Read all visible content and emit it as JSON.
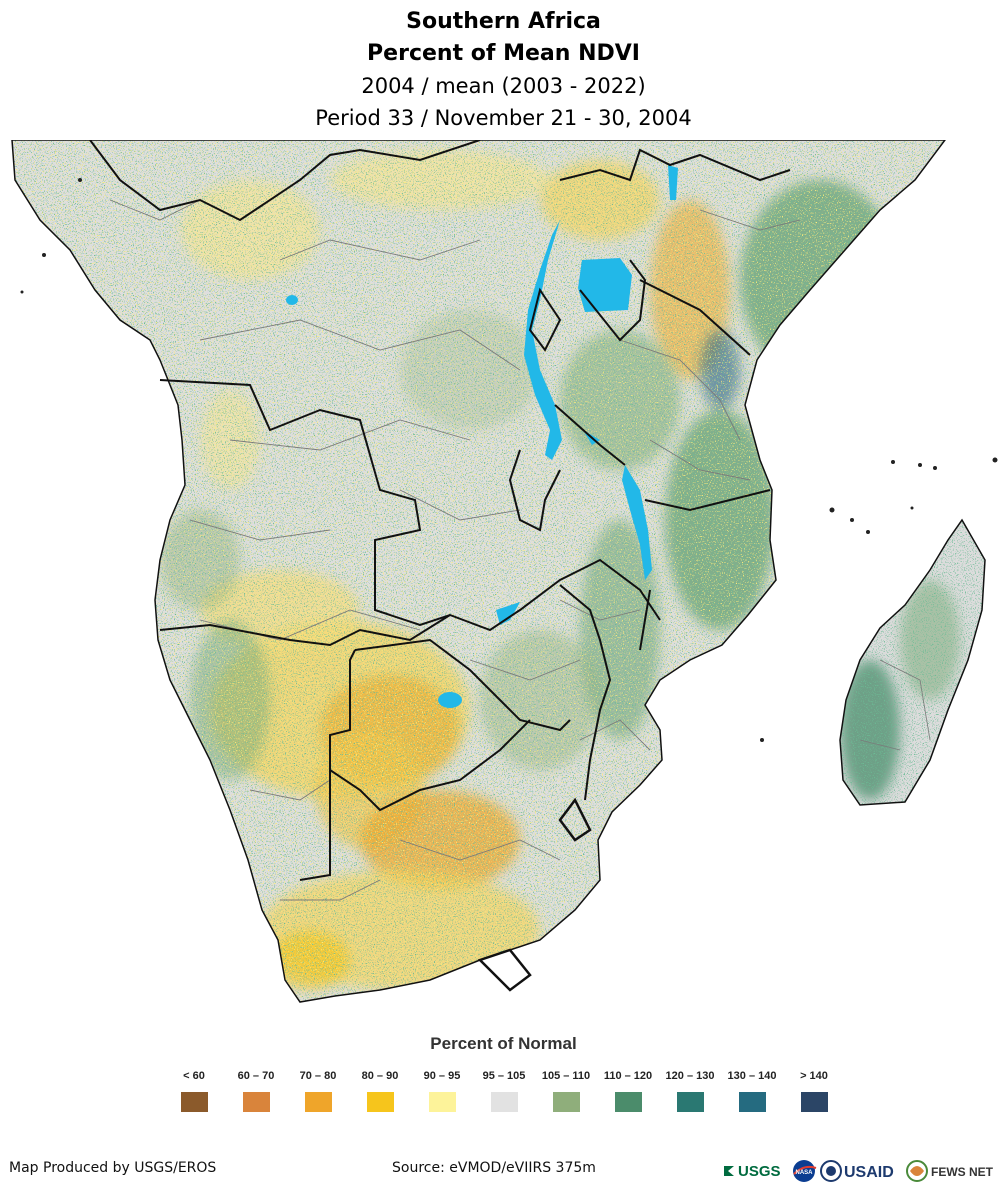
{
  "header": {
    "region": "Southern Africa",
    "product": "Percent of Mean NDVI",
    "comparison": "2004 / mean (2003 - 2022)",
    "period": "Period 33 / November 21 - 30, 2004"
  },
  "legend": {
    "title": "Percent of Normal",
    "classes": [
      {
        "label": "< 60",
        "color": "#8b5a2b"
      },
      {
        "label": "60 – 70",
        "color": "#d9843b"
      },
      {
        "label": "70 – 80",
        "color": "#efa52a"
      },
      {
        "label": "80 – 90",
        "color": "#f6c51c"
      },
      {
        "label": "90 – 95",
        "color": "#fdf39a"
      },
      {
        "label": "95 – 105",
        "color": "#e2e2e2"
      },
      {
        "label": "105 – 110",
        "color": "#8fae7b"
      },
      {
        "label": "110 – 120",
        "color": "#4b8c6b"
      },
      {
        "label": "120 – 130",
        "color": "#2a7872"
      },
      {
        "label": "130 – 140",
        "color": "#256b80"
      },
      {
        "label": "> 140",
        "color": "#2b4566"
      }
    ]
  },
  "footer": {
    "producer": "Map Produced by USGS/EROS",
    "source": "Source: eVMOD/eVIIRS 375m"
  },
  "logos": {
    "usgs": "USGS",
    "nasa": "NASA",
    "usaid": "USAID",
    "fewsnet": "FEWS NET"
  },
  "colors": {
    "water": "#22b8e8",
    "border": "#111111",
    "admin": "#7a7a7a"
  }
}
